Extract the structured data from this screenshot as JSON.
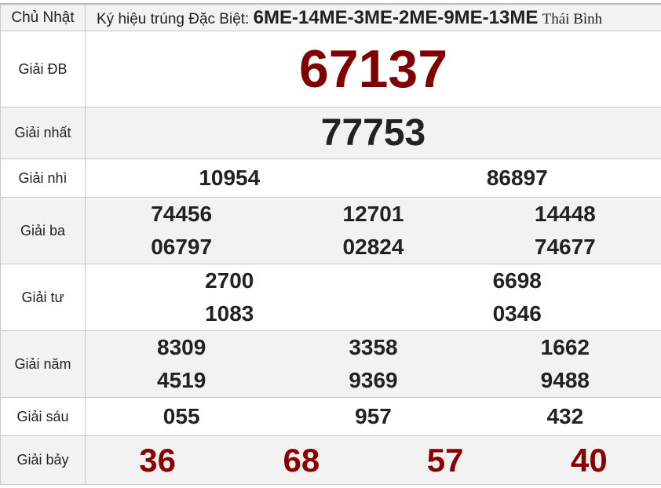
{
  "header": {
    "day": "Chủ Nhật",
    "prefix": "Ký hiệu trúng Đặc Biệt:",
    "codes": "6ME-14ME-3ME-2ME-9ME-13ME",
    "province": "Thái Bình"
  },
  "prizes": {
    "db": {
      "label": "Giải ĐB",
      "numbers": [
        "67137"
      ]
    },
    "nhat": {
      "label": "Giải nhất",
      "numbers": [
        "77753"
      ]
    },
    "nhi": {
      "label": "Giải nhì",
      "numbers": [
        "10954",
        "86897"
      ]
    },
    "ba": {
      "label": "Giải ba",
      "numbers": [
        "74456",
        "12701",
        "14448",
        "06797",
        "02824",
        "74677"
      ]
    },
    "tu": {
      "label": "Giải tư",
      "numbers": [
        "2700",
        "6698",
        "1083",
        "0346"
      ]
    },
    "nam": {
      "label": "Giải năm",
      "numbers": [
        "8309",
        "3358",
        "1662",
        "4519",
        "9369",
        "9488"
      ]
    },
    "sau": {
      "label": "Giải sáu",
      "numbers": [
        "055",
        "957",
        "432"
      ]
    },
    "bay": {
      "label": "Giải bảy",
      "numbers": [
        "36",
        "68",
        "57",
        "40"
      ]
    }
  },
  "colors": {
    "special": "#7f0000",
    "seventh": "#8b0000",
    "text": "#222222",
    "alt_row": "#f2f2f2"
  }
}
